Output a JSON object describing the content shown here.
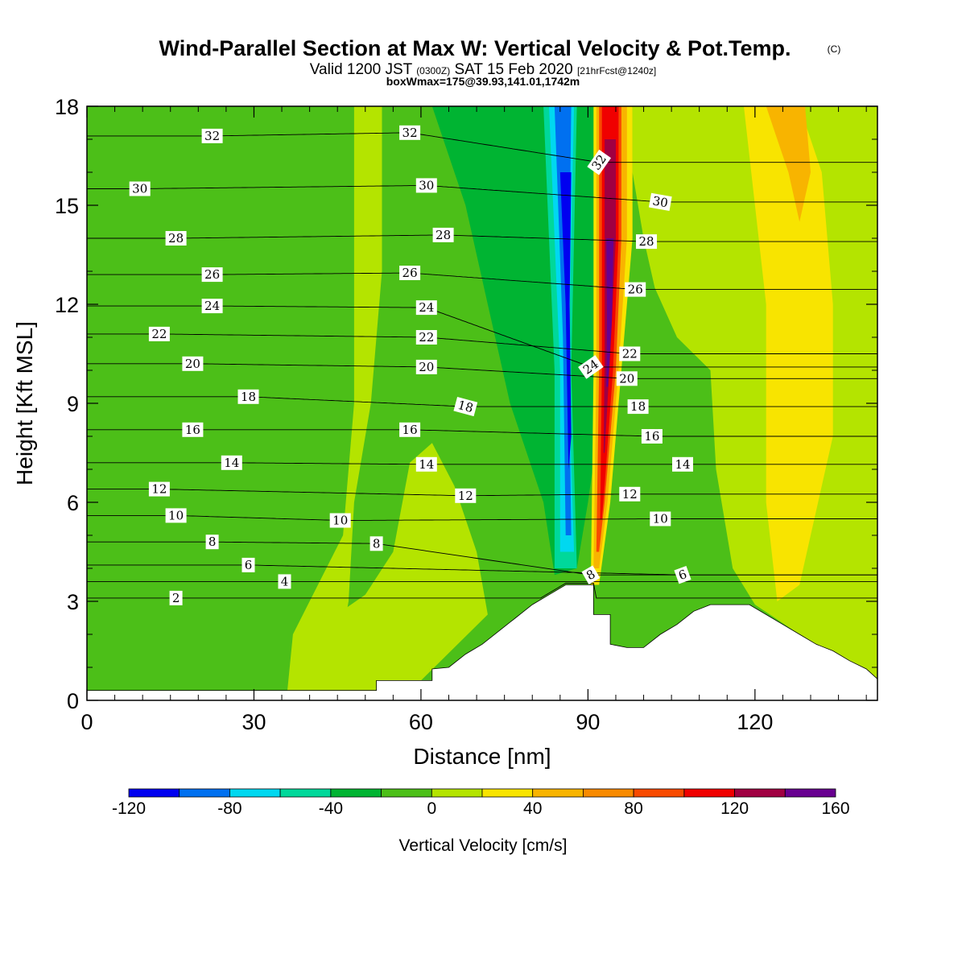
{
  "title": {
    "main": "Wind-Parallel Section at Max W: Vertical Velocity & Pot.Temp.",
    "copyright": "(C)",
    "valid_prefix": "Valid 1200 JST",
    "valid_utc": "(0300Z)",
    "valid_date": "SAT 15 Feb 2020",
    "forecast": "[21hrFcst@1240z]",
    "box_info": "boxWmax=175@39.93,141.01,1742m"
  },
  "chart_data": {
    "type": "heatmap",
    "xlabel": "Distance [nm]",
    "ylabel": "Height [Kft MSL]",
    "xlim": [
      0,
      142
    ],
    "ylim": [
      0,
      18
    ],
    "x_ticks": [
      0,
      30,
      60,
      90,
      120
    ],
    "y_ticks": [
      0,
      3,
      6,
      9,
      12,
      15,
      18
    ],
    "colorbar": {
      "title": "Vertical Velocity [cm/s]",
      "boundaries": [
        -120,
        -100,
        -80,
        -60,
        -40,
        -20,
        0,
        20,
        40,
        60,
        80,
        100,
        120,
        140,
        160
      ],
      "tick_labels": [
        "-120",
        "-80",
        "-40",
        "0",
        "40",
        "80",
        "120",
        "160"
      ],
      "colors": [
        "#0000f0",
        "#0070f0",
        "#00d8f0",
        "#00d89a",
        "#00b432",
        "#4cbf18",
        "#b4e400",
        "#f8e400",
        "#f8b400",
        "#f88a00",
        "#f84a00",
        "#f00000",
        "#a00042",
        "#680090"
      ]
    },
    "terrain_profile": [
      [
        0,
        0.3
      ],
      [
        52,
        0.3
      ],
      [
        52,
        0.6
      ],
      [
        60,
        0.6
      ],
      [
        62,
        0.6
      ],
      [
        62,
        0.95
      ],
      [
        65,
        1.0
      ],
      [
        68,
        1.4
      ],
      [
        71,
        1.7
      ],
      [
        74,
        2.1
      ],
      [
        77,
        2.5
      ],
      [
        80,
        2.9
      ],
      [
        83,
        3.2
      ],
      [
        86,
        3.5
      ],
      [
        91,
        3.5
      ],
      [
        91,
        2.6
      ],
      [
        94,
        2.6
      ],
      [
        94,
        1.7
      ],
      [
        97,
        1.6
      ],
      [
        100,
        1.6
      ],
      [
        103,
        2.0
      ],
      [
        106,
        2.3
      ],
      [
        109,
        2.7
      ],
      [
        112,
        2.9
      ],
      [
        119,
        2.9
      ],
      [
        122,
        2.6
      ],
      [
        125,
        2.3
      ],
      [
        128,
        2.0
      ],
      [
        131,
        1.7
      ],
      [
        134,
        1.5
      ],
      [
        137,
        1.2
      ],
      [
        140,
        0.95
      ],
      [
        142,
        0.65
      ]
    ],
    "velocity_fields": [
      {
        "name": "background",
        "value": -10
      },
      {
        "name": "light-band-left",
        "value": 10,
        "region": [
          [
            48,
            18
          ],
          [
            53,
            18
          ],
          [
            53,
            13
          ],
          [
            51,
            9
          ],
          [
            48,
            6
          ],
          [
            47,
            3
          ],
          [
            44,
            0.3
          ],
          [
            36,
            0.3
          ],
          [
            37,
            2
          ],
          [
            40,
            3
          ],
          [
            46,
            5
          ],
          [
            48,
            9
          ]
        ]
      },
      {
        "name": "light-low",
        "value": 10,
        "region": [
          [
            38,
            0.3
          ],
          [
            52,
            0.3
          ],
          [
            60,
            0.6
          ],
          [
            66,
            1.6
          ],
          [
            72,
            2.6
          ],
          [
            70,
            4.5
          ],
          [
            66,
            6.5
          ],
          [
            62,
            7.8
          ],
          [
            58,
            7.2
          ],
          [
            55,
            4.5
          ],
          [
            50,
            3.2
          ],
          [
            44,
            2.5
          ]
        ]
      },
      {
        "name": "light-band-right",
        "value": 10,
        "region": [
          [
            98,
            18
          ],
          [
            142,
            18
          ],
          [
            142,
            0.65
          ],
          [
            136,
            1.2
          ],
          [
            128,
            2.0
          ],
          [
            120,
            2.9
          ],
          [
            116,
            4.0
          ],
          [
            113,
            7.0
          ],
          [
            112,
            10
          ],
          [
            106,
            11
          ],
          [
            102,
            12.5
          ],
          [
            100,
            14
          ],
          [
            98,
            16
          ]
        ]
      },
      {
        "name": "down-shadow-wide",
        "value": -30,
        "region": [
          [
            62,
            18
          ],
          [
            98,
            18
          ],
          [
            95,
            12
          ],
          [
            90,
            6
          ],
          [
            88,
            4
          ],
          [
            84,
            3.8
          ],
          [
            82,
            6
          ],
          [
            76,
            9
          ],
          [
            72,
            12
          ],
          [
            68,
            15
          ]
        ]
      },
      {
        "name": "yellow-right",
        "value": 30,
        "region": [
          [
            118,
            18
          ],
          [
            128,
            18
          ],
          [
            132,
            16
          ],
          [
            134,
            12
          ],
          [
            134,
            8
          ],
          [
            130,
            5
          ],
          [
            128,
            3.5
          ],
          [
            124,
            3.0
          ],
          [
            122,
            6
          ],
          [
            122,
            12
          ]
        ]
      },
      {
        "name": "orange-right",
        "value": 50,
        "region": [
          [
            122,
            18
          ],
          [
            129,
            18
          ],
          [
            130,
            16
          ],
          [
            128,
            14.5
          ],
          [
            126,
            16
          ],
          [
            124,
            17
          ]
        ]
      },
      {
        "name": "downdraft-1",
        "value": -50,
        "region": [
          [
            82,
            18
          ],
          [
            88,
            18
          ],
          [
            87,
            10
          ],
          [
            88,
            4
          ],
          [
            84,
            4
          ],
          [
            84,
            10
          ]
        ]
      },
      {
        "name": "downdraft-2",
        "value": -70,
        "region": [
          [
            83,
            18
          ],
          [
            87.5,
            18
          ],
          [
            86.5,
            10
          ],
          [
            87.5,
            4.5
          ],
          [
            85,
            4.5
          ],
          [
            85,
            10
          ]
        ]
      },
      {
        "name": "downdraft-3",
        "value": -90,
        "region": [
          [
            84,
            18
          ],
          [
            87,
            18
          ],
          [
            86.5,
            11
          ],
          [
            87,
            5
          ],
          [
            86,
            5
          ],
          [
            85.5,
            11
          ]
        ]
      },
      {
        "name": "downdraft-4",
        "value": -110,
        "region": [
          [
            85,
            16
          ],
          [
            87,
            16
          ],
          [
            86.7,
            12
          ],
          [
            87,
            8
          ],
          [
            86.5,
            7
          ],
          [
            86,
            12
          ]
        ]
      },
      {
        "name": "updraft-1",
        "value": 30,
        "region": [
          [
            91,
            18
          ],
          [
            98,
            18
          ],
          [
            98,
            14
          ],
          [
            96,
            10
          ],
          [
            94,
            6
          ],
          [
            92,
            3.5
          ],
          [
            90.5,
            3.5
          ],
          [
            91,
            10
          ]
        ]
      },
      {
        "name": "updraft-2",
        "value": 50,
        "region": [
          [
            91.5,
            18
          ],
          [
            97,
            18
          ],
          [
            97,
            14
          ],
          [
            95.5,
            10
          ],
          [
            93.5,
            6
          ],
          [
            92,
            4
          ],
          [
            91,
            4
          ],
          [
            91.5,
            10
          ]
        ]
      },
      {
        "name": "updraft-3",
        "value": 90,
        "region": [
          [
            92,
            18
          ],
          [
            96,
            18
          ],
          [
            96,
            14
          ],
          [
            95,
            10
          ],
          [
            93,
            6
          ],
          [
            92,
            4.5
          ],
          [
            91.5,
            4.5
          ],
          [
            92,
            10
          ]
        ]
      },
      {
        "name": "updraft-4",
        "value": 110,
        "region": [
          [
            92.5,
            18
          ],
          [
            95.5,
            18
          ],
          [
            95.5,
            14
          ],
          [
            94.5,
            10
          ],
          [
            93,
            6.5
          ],
          [
            92.5,
            5.5
          ],
          [
            92.2,
            5.5
          ],
          [
            92.5,
            10
          ]
        ]
      },
      {
        "name": "updraft-5",
        "value": 130,
        "region": [
          [
            93,
            17
          ],
          [
            95,
            17
          ],
          [
            95,
            14
          ],
          [
            94,
            10.5
          ],
          [
            93,
            7.5
          ],
          [
            92.8,
            7.5
          ],
          [
            93,
            10.5
          ]
        ]
      },
      {
        "name": "updraft-6",
        "value": 150,
        "region": [
          [
            93.3,
            14
          ],
          [
            94.6,
            14
          ],
          [
            94.3,
            11.5
          ],
          [
            93.6,
            9.5
          ],
          [
            93.3,
            9.5
          ],
          [
            93.4,
            11.5
          ]
        ]
      }
    ],
    "contour_labels": [
      {
        "x": 22.5,
        "y": 17.1,
        "text": "32"
      },
      {
        "x": 58,
        "y": 17.2,
        "text": "32"
      },
      {
        "x": 92,
        "y": 16.3,
        "text": "32",
        "angle": -55
      },
      {
        "x": 9.5,
        "y": 15.5,
        "text": "30"
      },
      {
        "x": 61,
        "y": 15.6,
        "text": "30"
      },
      {
        "x": 103,
        "y": 15.1,
        "text": "30",
        "angle": 10
      },
      {
        "x": 16,
        "y": 14.0,
        "text": "28"
      },
      {
        "x": 64,
        "y": 14.1,
        "text": "28"
      },
      {
        "x": 100.5,
        "y": 13.9,
        "text": "28"
      },
      {
        "x": 22.5,
        "y": 12.9,
        "text": "26"
      },
      {
        "x": 58,
        "y": 12.95,
        "text": "26"
      },
      {
        "x": 98.5,
        "y": 12.45,
        "text": "26"
      },
      {
        "x": 22.5,
        "y": 11.95,
        "text": "24"
      },
      {
        "x": 61,
        "y": 11.9,
        "text": "24"
      },
      {
        "x": 90.5,
        "y": 10.1,
        "text": "24",
        "angle": -35
      },
      {
        "x": 13,
        "y": 11.1,
        "text": "22"
      },
      {
        "x": 61,
        "y": 11.0,
        "text": "22"
      },
      {
        "x": 97.5,
        "y": 10.5,
        "text": "22"
      },
      {
        "x": 19,
        "y": 10.2,
        "text": "20"
      },
      {
        "x": 61,
        "y": 10.1,
        "text": "20"
      },
      {
        "x": 97,
        "y": 9.75,
        "text": "20"
      },
      {
        "x": 29,
        "y": 9.2,
        "text": "18"
      },
      {
        "x": 68,
        "y": 8.9,
        "text": "18",
        "angle": 15
      },
      {
        "x": 99,
        "y": 8.9,
        "text": "18"
      },
      {
        "x": 19,
        "y": 8.2,
        "text": "16"
      },
      {
        "x": 58,
        "y": 8.2,
        "text": "16"
      },
      {
        "x": 101.5,
        "y": 8.0,
        "text": "16"
      },
      {
        "x": 26,
        "y": 7.2,
        "text": "14"
      },
      {
        "x": 61,
        "y": 7.15,
        "text": "14"
      },
      {
        "x": 107,
        "y": 7.15,
        "text": "14"
      },
      {
        "x": 13,
        "y": 6.4,
        "text": "12"
      },
      {
        "x": 68,
        "y": 6.2,
        "text": "12"
      },
      {
        "x": 97.5,
        "y": 6.25,
        "text": "12"
      },
      {
        "x": 16,
        "y": 5.6,
        "text": "10"
      },
      {
        "x": 45.5,
        "y": 5.45,
        "text": "10"
      },
      {
        "x": 103,
        "y": 5.5,
        "text": "10"
      },
      {
        "x": 22.5,
        "y": 4.8,
        "text": "8"
      },
      {
        "x": 52,
        "y": 4.75,
        "text": "8"
      },
      {
        "x": 90.5,
        "y": 3.8,
        "text": "8",
        "angle": -30
      },
      {
        "x": 29,
        "y": 4.1,
        "text": "6"
      },
      {
        "x": 107,
        "y": 3.8,
        "text": "6",
        "angle": -20
      },
      {
        "x": 35.5,
        "y": 3.6,
        "text": "4"
      },
      {
        "x": 16,
        "y": 3.1,
        "text": "2"
      }
    ],
    "grid": false,
    "legend": "bottom"
  }
}
